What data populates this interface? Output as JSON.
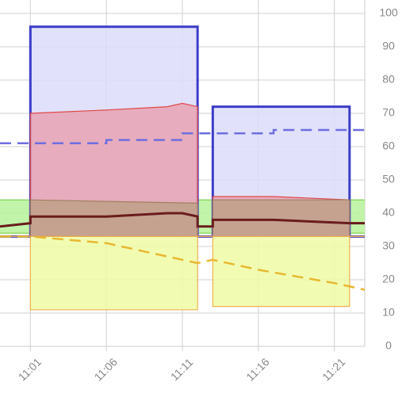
{
  "chart_data": {
    "type": "area",
    "xlim": [
      "10:59",
      "11:23"
    ],
    "xticks": [
      "11:01",
      "11:06",
      "11:11",
      "11:16",
      "11:21"
    ],
    "ylim": [
      0,
      100
    ],
    "yticks": [
      0,
      10,
      20,
      30,
      40,
      50,
      60,
      70,
      80,
      90,
      100
    ],
    "grid": true,
    "series": [
      {
        "kind": "band",
        "x": [
          "10:59",
          "11:23"
        ],
        "high": [
          44,
          44
        ],
        "low": [
          34,
          34
        ],
        "color": "#b6f29a",
        "edge": "#78d048"
      },
      {
        "kind": "band",
        "x": [
          "10:59",
          "11:01",
          "11:01",
          "11:12",
          "11:12",
          "11:13",
          "11:13",
          "11:22",
          "11:22",
          "11:23"
        ],
        "high": [
          33,
          33,
          96,
          96,
          33,
          33,
          72,
          72,
          33,
          33
        ],
        "low": [
          33,
          33,
          33,
          33,
          33,
          33,
          33,
          33,
          33,
          33
        ],
        "color": "#dcdcfa",
        "edge": "#3c3cc8"
      },
      {
        "kind": "band",
        "x": [
          "10:59",
          "11:01",
          "11:01",
          "11:06",
          "11:10",
          "11:11",
          "11:12",
          "11:12",
          "11:13",
          "11:13",
          "11:17",
          "11:22",
          "11:22",
          "11:23"
        ],
        "high": [
          33,
          33,
          70,
          71,
          72,
          73,
          72,
          33,
          33,
          45,
          45,
          44,
          33,
          33
        ],
        "low": [
          33,
          33,
          33,
          33,
          33,
          33,
          33,
          33,
          33,
          33,
          33,
          33,
          33,
          33
        ],
        "color": "#e8a2b2",
        "edge": "#e04848"
      },
      {
        "kind": "band",
        "x": [
          "10:59",
          "11:01",
          "11:01",
          "11:12",
          "11:12",
          "11:13",
          "11:13",
          "11:22",
          "11:22",
          "11:23"
        ],
        "high": [
          33,
          33,
          44,
          43,
          33,
          33,
          44,
          44,
          33,
          33
        ],
        "low": [
          33,
          33,
          33,
          33,
          33,
          33,
          33,
          33,
          33,
          33
        ],
        "color": "#bfa088",
        "edge": "#a08060"
      },
      {
        "kind": "band",
        "x": [
          "10:59",
          "11:01",
          "11:01",
          "11:12",
          "11:12",
          "11:13",
          "11:13",
          "11:22",
          "11:22",
          "11:23"
        ],
        "high": [
          33,
          33,
          33,
          33,
          33,
          33,
          33,
          33,
          33,
          33
        ],
        "low": [
          33,
          33,
          11,
          11,
          33,
          33,
          12,
          12,
          33,
          33
        ],
        "color": "#eefca4",
        "edge": "#f0b050"
      },
      {
        "kind": "line",
        "x": [
          "10:59",
          "11:01",
          "11:01",
          "11:06",
          "11:10",
          "11:11",
          "11:12",
          "11:12",
          "11:13",
          "11:13",
          "11:17",
          "11:22",
          "11:23"
        ],
        "values": [
          36,
          37,
          39,
          39,
          40,
          40,
          39,
          36,
          36,
          38,
          38,
          37,
          37
        ],
        "color": "#6a1c1c",
        "width": 3
      },
      {
        "kind": "line",
        "dashed": true,
        "x": [
          "10:59",
          "11:06",
          "11:06",
          "11:11",
          "11:11",
          "11:17",
          "11:17",
          "11:23"
        ],
        "values": [
          61,
          61,
          62,
          62,
          64,
          64,
          65,
          65
        ],
        "color": "#6e6ee0",
        "width": 2.5
      },
      {
        "kind": "line",
        "dashed": true,
        "x": [
          "10:59",
          "11:01",
          "11:06",
          "11:11",
          "11:12",
          "11:13",
          "11:16",
          "11:21",
          "11:23"
        ],
        "values": [
          33,
          33,
          31,
          26,
          25,
          26,
          23,
          19,
          17
        ],
        "color": "#e8b830",
        "width": 2.5
      }
    ]
  }
}
